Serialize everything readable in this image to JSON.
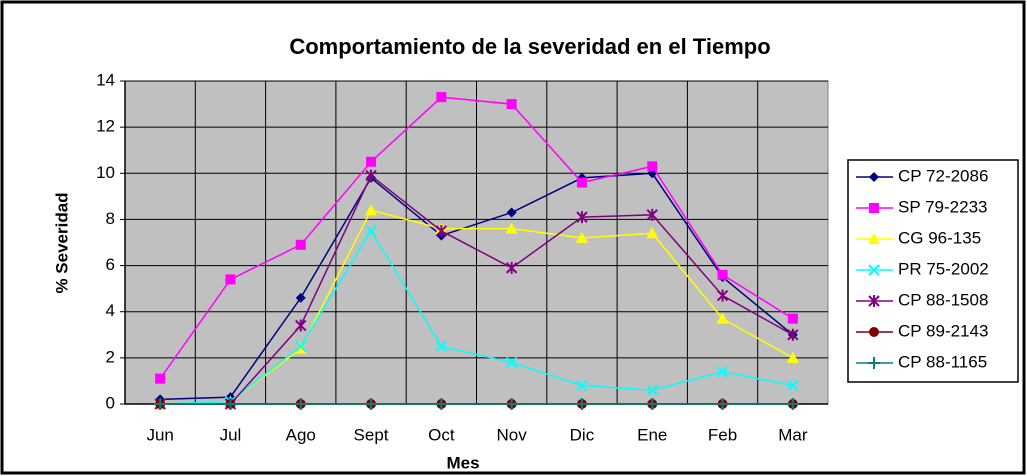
{
  "chart_data": {
    "type": "line",
    "title": "Comportamiento de la severidad en el Tiempo",
    "x_label": "Mes",
    "y_label": "% Severidad",
    "categories": [
      "Jun",
      "Jul",
      "Ago",
      "Sept",
      "Oct",
      "Nov",
      "Dic",
      "Ene",
      "Feb",
      "Mar"
    ],
    "ylim": [
      0,
      14
    ],
    "yticks": [
      0,
      2,
      4,
      6,
      8,
      10,
      12,
      14
    ],
    "grid": true,
    "legend": "right",
    "series": [
      {
        "name": "CP 72-2086",
        "color": "#000080",
        "marker": "diamond",
        "values": [
          0.2,
          0.3,
          4.6,
          9.8,
          7.3,
          8.3,
          9.8,
          10.0,
          5.5,
          3.0
        ]
      },
      {
        "name": "SP 79-2233",
        "color": "#ff00ff",
        "marker": "square",
        "values": [
          1.1,
          5.4,
          6.9,
          10.5,
          13.3,
          13.0,
          9.6,
          10.3,
          5.6,
          3.7
        ]
      },
      {
        "name": "CG 96-135",
        "color": "#ffff00",
        "marker": "triangle",
        "values": [
          0,
          0.1,
          2.4,
          8.4,
          7.6,
          7.6,
          7.2,
          7.4,
          3.7,
          2.0
        ]
      },
      {
        "name": "PR 75-2002",
        "color": "#00ffff",
        "marker": "x",
        "values": [
          0,
          0.1,
          2.5,
          7.5,
          2.5,
          1.8,
          0.8,
          0.6,
          1.4,
          0.8
        ]
      },
      {
        "name": "CP 88-1508",
        "color": "#800080",
        "marker": "asterisk",
        "values": [
          0,
          0,
          3.4,
          9.9,
          7.5,
          5.9,
          8.1,
          8.2,
          4.7,
          3.0
        ]
      },
      {
        "name": "CP 89-2143",
        "color": "#800000",
        "marker": "circle",
        "values": [
          0,
          0,
          0,
          0,
          0,
          0,
          0,
          0,
          0,
          0
        ]
      },
      {
        "name": "CP 88-1165",
        "color": "#008080",
        "marker": "plus",
        "values": [
          0,
          0,
          0,
          0,
          0,
          0,
          0,
          0,
          0,
          0
        ]
      }
    ]
  }
}
